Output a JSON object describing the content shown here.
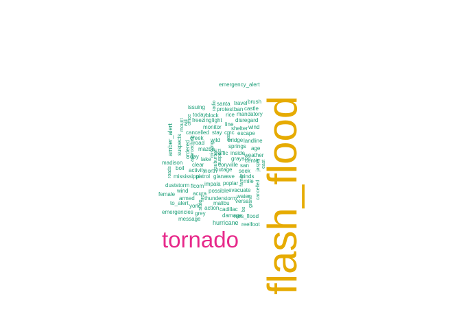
{
  "wordcloud": {
    "colors": {
      "teal": "#1b9e77",
      "pink": "#e7298a",
      "gold": "#e6ab02"
    },
    "words": [
      {
        "text": "flash_flood",
        "color": "gold",
        "vertical": true
      },
      {
        "text": "tornado",
        "color": "pink",
        "vertical": false
      },
      {
        "text": "emergency_alert",
        "color": "teal",
        "vertical": false
      },
      {
        "text": "santa",
        "color": "teal",
        "vertical": false
      },
      {
        "text": "travel",
        "color": "teal",
        "vertical": false
      },
      {
        "text": "brush",
        "color": "teal",
        "vertical": false
      },
      {
        "text": "issuing",
        "color": "teal",
        "vertical": false
      },
      {
        "text": "protest",
        "color": "teal",
        "vertical": false
      },
      {
        "text": "ban",
        "color": "teal",
        "vertical": false
      },
      {
        "text": "castle",
        "color": "teal",
        "vertical": false
      },
      {
        "text": "radio",
        "color": "teal",
        "vertical": true
      },
      {
        "text": "today",
        "color": "teal",
        "vertical": false
      },
      {
        "text": "block",
        "color": "teal",
        "vertical": false
      },
      {
        "text": "rice",
        "color": "teal",
        "vertical": false
      },
      {
        "text": "mandatory",
        "color": "teal",
        "vertical": false
      },
      {
        "text": "office",
        "color": "teal",
        "vertical": true
      },
      {
        "text": "freezing",
        "color": "teal",
        "vertical": false
      },
      {
        "text": "light",
        "color": "teal",
        "vertical": false
      },
      {
        "text": "disregard",
        "color": "teal",
        "vertical": false
      },
      {
        "text": "will",
        "color": "teal",
        "vertical": true
      },
      {
        "text": "line",
        "color": "teal",
        "vertical": false
      },
      {
        "text": "mount",
        "color": "teal",
        "vertical": true
      },
      {
        "text": "monitor",
        "color": "teal",
        "vertical": false
      },
      {
        "text": "shelter",
        "color": "teal",
        "vertical": false
      },
      {
        "text": "wind",
        "color": "teal",
        "vertical": false
      },
      {
        "text": "amber_alert",
        "color": "teal",
        "vertical": true
      },
      {
        "text": "cancelled",
        "color": "teal",
        "vertical": false
      },
      {
        "text": "stay",
        "color": "teal",
        "vertical": false
      },
      {
        "text": "cmc",
        "color": "teal",
        "vertical": false
      },
      {
        "text": "escape",
        "color": "teal",
        "vertical": false
      },
      {
        "text": "creek",
        "color": "teal",
        "vertical": false
      },
      {
        "text": "wild",
        "color": "teal",
        "vertical": false
      },
      {
        "text": "gas",
        "color": "teal",
        "vertical": true
      },
      {
        "text": "bridge",
        "color": "teal",
        "vertical": false
      },
      {
        "text": "landline",
        "color": "teal",
        "vertical": false
      },
      {
        "text": "suspects",
        "color": "teal",
        "vertical": true
      },
      {
        "text": "road",
        "color": "teal",
        "vertical": false
      },
      {
        "text": "springs",
        "color": "teal",
        "vertical": false
      },
      {
        "text": "age",
        "color": "teal",
        "vertical": false
      },
      {
        "text": "ordered",
        "color": "teal",
        "vertical": true
      },
      {
        "text": "approaching",
        "color": "teal",
        "vertical": true
      },
      {
        "text": "mazda",
        "color": "teal",
        "vertical": false
      },
      {
        "text": "missing",
        "color": "teal",
        "vertical": true
      },
      {
        "text": "traffic",
        "color": "teal",
        "vertical": false
      },
      {
        "text": "inside",
        "color": "teal",
        "vertical": false
      },
      {
        "text": "day",
        "color": "teal",
        "vertical": false
      },
      {
        "text": "lake",
        "color": "teal",
        "vertical": false
      },
      {
        "text": "weather",
        "color": "teal",
        "vertical": false
      },
      {
        "text": "grayson",
        "color": "teal",
        "vertical": false
      },
      {
        "text": "center",
        "color": "teal",
        "vertical": false
      },
      {
        "text": "madison",
        "color": "teal",
        "vertical": false
      },
      {
        "text": "clear",
        "color": "teal",
        "vertical": false
      },
      {
        "text": "suspect",
        "color": "teal",
        "vertical": true
      },
      {
        "text": "suburban",
        "color": "teal",
        "vertical": true
      },
      {
        "text": "coryville",
        "color": "teal",
        "vertical": false
      },
      {
        "text": "jasper",
        "color": "teal",
        "vertical": true
      },
      {
        "text": "east",
        "color": "teal",
        "vertical": true
      },
      {
        "text": "roads",
        "color": "teal",
        "vertical": true
      },
      {
        "text": "boil",
        "color": "teal",
        "vertical": false
      },
      {
        "text": "north",
        "color": "teal",
        "vertical": false
      },
      {
        "text": "outage",
        "color": "teal",
        "vertical": false
      },
      {
        "text": "san",
        "color": "teal",
        "vertical": false
      },
      {
        "text": "seek",
        "color": "teal",
        "vertical": false
      },
      {
        "text": "activity",
        "color": "teal",
        "vertical": false
      },
      {
        "text": "glana",
        "color": "teal",
        "vertical": false
      },
      {
        "text": "ave",
        "color": "teal",
        "vertical": false
      },
      {
        "text": "winds",
        "color": "teal",
        "vertical": false
      },
      {
        "text": "mississippi",
        "color": "teal",
        "vertical": false
      },
      {
        "text": "patrol",
        "color": "teal",
        "vertical": false
      },
      {
        "text": "mile",
        "color": "teal",
        "vertical": false
      },
      {
        "text": "impala",
        "color": "teal",
        "vertical": false
      },
      {
        "text": "poplar",
        "color": "teal",
        "vertical": false
      },
      {
        "text": "family",
        "color": "teal",
        "vertical": true
      },
      {
        "text": "duststorm",
        "color": "teal",
        "vertical": false
      },
      {
        "text": "flcom",
        "color": "teal",
        "vertical": false
      },
      {
        "text": "cancelled",
        "color": "teal",
        "vertical": true
      },
      {
        "text": "possible",
        "color": "teal",
        "vertical": false
      },
      {
        "text": "evacuate",
        "color": "teal",
        "vertical": false
      },
      {
        "text": "wind",
        "color": "teal",
        "vertical": false
      },
      {
        "text": "acura",
        "color": "teal",
        "vertical": false
      },
      {
        "text": "female",
        "color": "teal",
        "vertical": false
      },
      {
        "text": "water",
        "color": "teal",
        "vertical": false
      },
      {
        "text": "armed",
        "color": "teal",
        "vertical": false
      },
      {
        "text": "fire",
        "color": "teal",
        "vertical": true
      },
      {
        "text": "thunderstorm",
        "color": "teal",
        "vertical": false
      },
      {
        "text": "versa",
        "color": "teal",
        "vertical": false
      },
      {
        "text": "grand",
        "color": "teal",
        "vertical": true
      },
      {
        "text": "to_alert",
        "color": "teal",
        "vertical": false
      },
      {
        "text": "york",
        "color": "teal",
        "vertical": false
      },
      {
        "text": "malibu",
        "color": "teal",
        "vertical": false
      },
      {
        "text": "state",
        "color": "teal",
        "vertical": true
      },
      {
        "text": "action",
        "color": "teal",
        "vertical": false
      },
      {
        "text": "cadillac",
        "color": "teal",
        "vertical": false
      },
      {
        "text": "bs",
        "color": "teal",
        "vertical": true
      },
      {
        "text": "emergencies",
        "color": "teal",
        "vertical": false
      },
      {
        "text": "grey",
        "color": "teal",
        "vertical": false
      },
      {
        "text": "damage",
        "color": "teal",
        "vertical": false
      },
      {
        "text": "nws_flood",
        "color": "teal",
        "vertical": false
      },
      {
        "text": "message",
        "color": "teal",
        "vertical": false
      },
      {
        "text": "hurricane",
        "color": "teal",
        "vertical": false
      },
      {
        "text": "reelfoot",
        "color": "teal",
        "vertical": false
      }
    ]
  }
}
